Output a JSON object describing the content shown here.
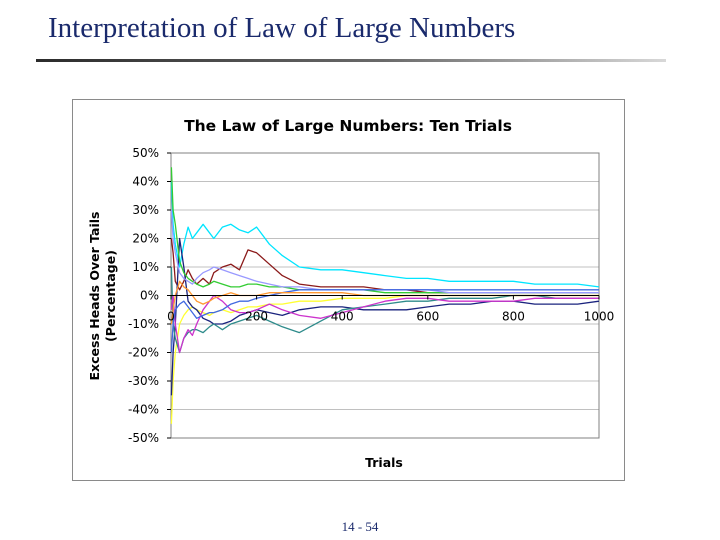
{
  "slide": {
    "title": "Interpretation of Law of Large Numbers",
    "page_number": "14 - 54"
  },
  "chart_data": {
    "type": "line",
    "title": "The Law of Large Numbers: Ten Trials",
    "xlabel": "Trials",
    "ylabel_line1": "Excess Heads Over Tails",
    "ylabel_line2": "(Percentage)",
    "xlim": [
      0,
      1000
    ],
    "ylim": [
      -50,
      50
    ],
    "x_ticks": [
      0,
      200,
      400,
      600,
      800,
      1000
    ],
    "x_tick_labels": [
      "0",
      "200",
      "400",
      "600",
      "800",
      "1000"
    ],
    "y_ticks": [
      50,
      40,
      30,
      20,
      10,
      0,
      -10,
      -20,
      -30,
      -40,
      -50
    ],
    "y_tick_labels": [
      "50%",
      "40%",
      "30%",
      "20%",
      "10%",
      "0%",
      "-10%",
      "-20%",
      "-30%",
      "-40%",
      "-50%"
    ],
    "grid": "horizontal",
    "legend": "none",
    "x": [
      1,
      5,
      10,
      20,
      30,
      40,
      50,
      60,
      75,
      90,
      100,
      120,
      140,
      160,
      180,
      200,
      230,
      260,
      300,
      350,
      400,
      450,
      500,
      550,
      600,
      650,
      700,
      750,
      800,
      850,
      900,
      950,
      1000
    ],
    "series": [
      {
        "color": "#00e5ff",
        "values": [
          40,
          25,
          18,
          10,
          18,
          24,
          20,
          22,
          25,
          22,
          20,
          24,
          25,
          23,
          22,
          24,
          18,
          14,
          10,
          9,
          9,
          8,
          7,
          6,
          6,
          5,
          5,
          5,
          5,
          4,
          4,
          4,
          3
        ]
      },
      {
        "color": "#8b1a1a",
        "values": [
          20,
          15,
          5,
          2,
          5,
          9,
          6,
          4,
          6,
          4,
          8,
          10,
          11,
          9,
          16,
          15,
          11,
          7,
          4,
          3,
          3,
          3,
          2,
          2,
          1,
          1,
          1,
          1,
          1,
          1,
          1,
          1,
          1
        ]
      },
      {
        "color": "#ffff33",
        "values": [
          -45,
          -30,
          -20,
          -10,
          -7,
          -5,
          -4,
          -5,
          -6,
          -7,
          -6,
          -5,
          -6,
          -5,
          -4,
          -4,
          -3,
          -3,
          -2,
          -2,
          -1,
          -1,
          -1,
          0,
          0,
          0,
          0,
          0,
          0,
          0,
          0,
          0,
          0
        ]
      },
      {
        "color": "#1a237e",
        "values": [
          -35,
          -20,
          -10,
          20,
          10,
          -2,
          -4,
          -5,
          -8,
          -9,
          -10,
          -10,
          -9,
          -7,
          -6,
          -5,
          -6,
          -7,
          -5,
          -4,
          -4,
          -5,
          -5,
          -5,
          -4,
          -3,
          -3,
          -2,
          -2,
          -3,
          -3,
          -3,
          -2
        ]
      },
      {
        "color": "#2e8b8b",
        "values": [
          10,
          -10,
          -15,
          -20,
          -15,
          -13,
          -12,
          -12,
          -13,
          -11,
          -10,
          -12,
          -10,
          -9,
          -8,
          -7,
          -9,
          -11,
          -13,
          -9,
          -5,
          -4,
          -3,
          -2,
          -2,
          -1,
          -1,
          -1,
          0,
          0,
          -1,
          -1,
          -1
        ]
      },
      {
        "color": "#cc33cc",
        "values": [
          -5,
          0,
          -10,
          -20,
          -15,
          -12,
          -14,
          -10,
          -5,
          -2,
          0,
          -2,
          -5,
          -6,
          -6,
          -5,
          -3,
          -5,
          -7,
          -8,
          -6,
          -4,
          -2,
          -1,
          -1,
          -2,
          -2,
          -2,
          -2,
          -1,
          -1,
          -1,
          -1
        ]
      },
      {
        "color": "#33cc33",
        "values": [
          45,
          30,
          25,
          12,
          8,
          6,
          5,
          4,
          3,
          4,
          5,
          4,
          3,
          3,
          4,
          4,
          3,
          3,
          2,
          2,
          2,
          2,
          1,
          1,
          1,
          1,
          1,
          1,
          1,
          1,
          1,
          1,
          1
        ]
      },
      {
        "color": "#9999ff",
        "values": [
          30,
          20,
          15,
          8,
          6,
          5,
          4,
          6,
          8,
          9,
          10,
          9,
          8,
          7,
          6,
          5,
          4,
          3,
          3,
          2,
          2,
          2,
          2,
          2,
          2,
          1,
          1,
          1,
          1,
          1,
          1,
          1,
          1
        ]
      },
      {
        "color": "#4169e1",
        "values": [
          -20,
          -10,
          -5,
          -3,
          -2,
          -4,
          -6,
          -8,
          -7,
          -6,
          -6,
          -5,
          -3,
          -2,
          -2,
          -1,
          0,
          1,
          2,
          2,
          2,
          2,
          2,
          2,
          2,
          2,
          2,
          2,
          2,
          2,
          2,
          2,
          2
        ]
      },
      {
        "color": "#ff9933",
        "values": [
          -10,
          -5,
          0,
          5,
          3,
          2,
          0,
          -2,
          -3,
          -2,
          -1,
          0,
          1,
          0,
          0,
          0,
          1,
          1,
          1,
          1,
          1,
          0,
          0,
          0,
          0,
          0,
          0,
          0,
          0,
          0,
          0,
          0,
          0
        ]
      }
    ]
  }
}
